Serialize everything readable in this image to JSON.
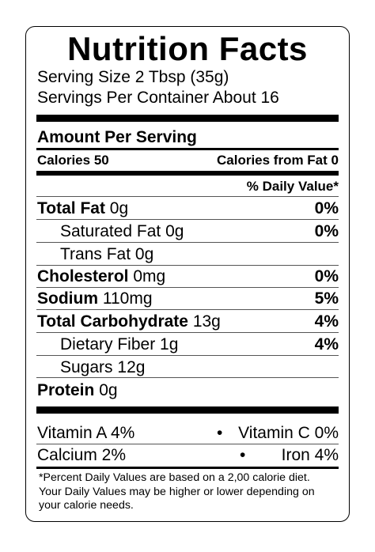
{
  "title": "Nutrition Facts",
  "serving_size": "Serving Size 2 Tbsp (35g)",
  "servings_per_container": "Servings Per Container About 16",
  "amount_header": "Amount Per Serving",
  "calories": {
    "label": "Calories",
    "value": "50"
  },
  "calories_fat": {
    "label": "Calories from Fat",
    "value": "0"
  },
  "dv_header": "% Daily Value*",
  "nutrients": [
    {
      "name": "Total Fat",
      "amount": "0g",
      "dv": "0%"
    },
    {
      "name": "Saturated Fat",
      "amount": "0g",
      "dv": "0%"
    },
    {
      "name": "Trans Fat",
      "amount": "0g",
      "dv": ""
    },
    {
      "name": "Cholesterol",
      "amount": "0mg",
      "dv": "0%"
    },
    {
      "name": "Sodium",
      "amount": "110mg",
      "dv": "5%"
    },
    {
      "name": "Total Carbohydrate",
      "amount": "13g",
      "dv": "4%"
    },
    {
      "name": "Dietary Fiber",
      "amount": "1g",
      "dv": "4%"
    },
    {
      "name": "Sugars",
      "amount": "12g",
      "dv": ""
    },
    {
      "name": "Protein",
      "amount": "0g",
      "dv": ""
    }
  ],
  "vitamins": [
    {
      "left": "Vitamin A  4%",
      "bullet": "•",
      "right": "Vitamin C  0%"
    },
    {
      "left": "Calcium  2%",
      "bullet": "•",
      "right": "Iron 4%"
    }
  ],
  "footnote": [
    "*Percent Daily Values are based on a 2,00 calorie diet.",
    "Your Daily Values may be higher or lower depending on",
    "your calorie needs."
  ]
}
